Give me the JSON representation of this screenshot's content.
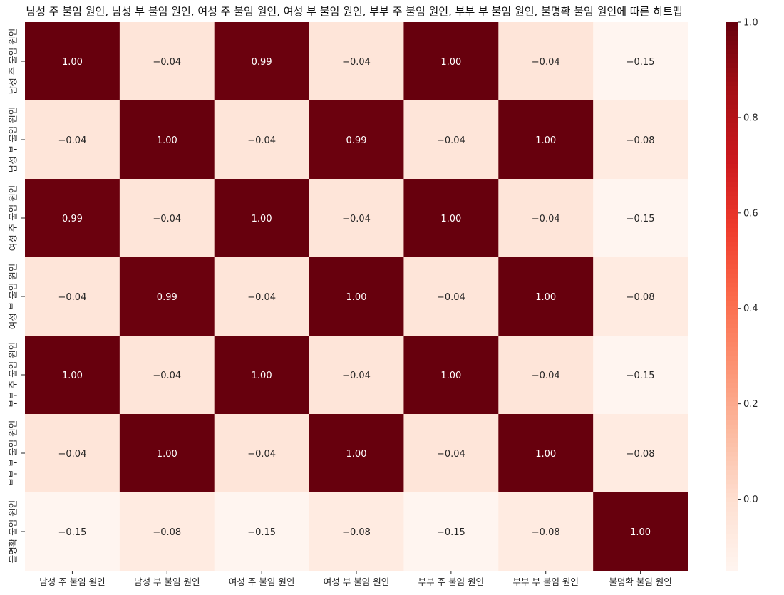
{
  "chart_data": {
    "type": "heatmap",
    "title": "남성 주 불임 원인, 남성 부 불임 원인, 여성 주 불임 원인, 여성 부 불임 원인, 부부 주 불임 원인, 부부 부 불임 원인, 불명확 불임 원인에 따른 히트맵",
    "x_categories": [
      "남성 주 불임 원인",
      "남성 부 불임 원인",
      "여성 주 불임 원인",
      "여성 부 불임 원인",
      "부부 주 불임 원인",
      "부부 부 불임 원인",
      "불명확 불임 원인"
    ],
    "y_categories": [
      "남성 주 불임 원인",
      "남성 부 불임 원인",
      "여성 주 불임 원인",
      "여성 부 불임 원인",
      "부부 주 불임 원인",
      "부부 부 불임 원인",
      "불명확 불임 원인"
    ],
    "values": [
      [
        1.0,
        -0.04,
        0.99,
        -0.04,
        1.0,
        -0.04,
        -0.15
      ],
      [
        -0.04,
        1.0,
        -0.04,
        0.99,
        -0.04,
        1.0,
        -0.08
      ],
      [
        0.99,
        -0.04,
        1.0,
        -0.04,
        1.0,
        -0.04,
        -0.15
      ],
      [
        -0.04,
        0.99,
        -0.04,
        1.0,
        -0.04,
        1.0,
        -0.08
      ],
      [
        1.0,
        -0.04,
        1.0,
        -0.04,
        1.0,
        -0.04,
        -0.15
      ],
      [
        -0.04,
        1.0,
        -0.04,
        1.0,
        -0.04,
        1.0,
        -0.08
      ],
      [
        -0.15,
        -0.08,
        -0.15,
        -0.08,
        -0.15,
        -0.08,
        1.0
      ]
    ],
    "annotation_labels": [
      [
        "1.00",
        "−0.04",
        "0.99",
        "−0.04",
        "1.00",
        "−0.04",
        "−0.15"
      ],
      [
        "−0.04",
        "1.00",
        "−0.04",
        "0.99",
        "−0.04",
        "1.00",
        "−0.08"
      ],
      [
        "0.99",
        "−0.04",
        "1.00",
        "−0.04",
        "1.00",
        "−0.04",
        "−0.15"
      ],
      [
        "−0.04",
        "0.99",
        "−0.04",
        "1.00",
        "−0.04",
        "1.00",
        "−0.08"
      ],
      [
        "1.00",
        "−0.04",
        "1.00",
        "−0.04",
        "1.00",
        "−0.04",
        "−0.15"
      ],
      [
        "−0.04",
        "1.00",
        "−0.04",
        "1.00",
        "−0.04",
        "1.00",
        "−0.08"
      ],
      [
        "−0.15",
        "−0.08",
        "−0.15",
        "−0.08",
        "−0.15",
        "−0.08",
        "1.00"
      ]
    ],
    "colormap": "Reds",
    "vmin": -0.15,
    "vmax": 1.0,
    "colorbar_ticks": [
      0.0,
      0.2,
      0.4,
      0.6,
      0.8,
      1.0
    ],
    "colorbar_tick_labels": [
      "0.0",
      "0.2",
      "0.4",
      "0.6",
      "0.8",
      "1.0"
    ],
    "colorbar_placement": "right",
    "grid": false
  }
}
